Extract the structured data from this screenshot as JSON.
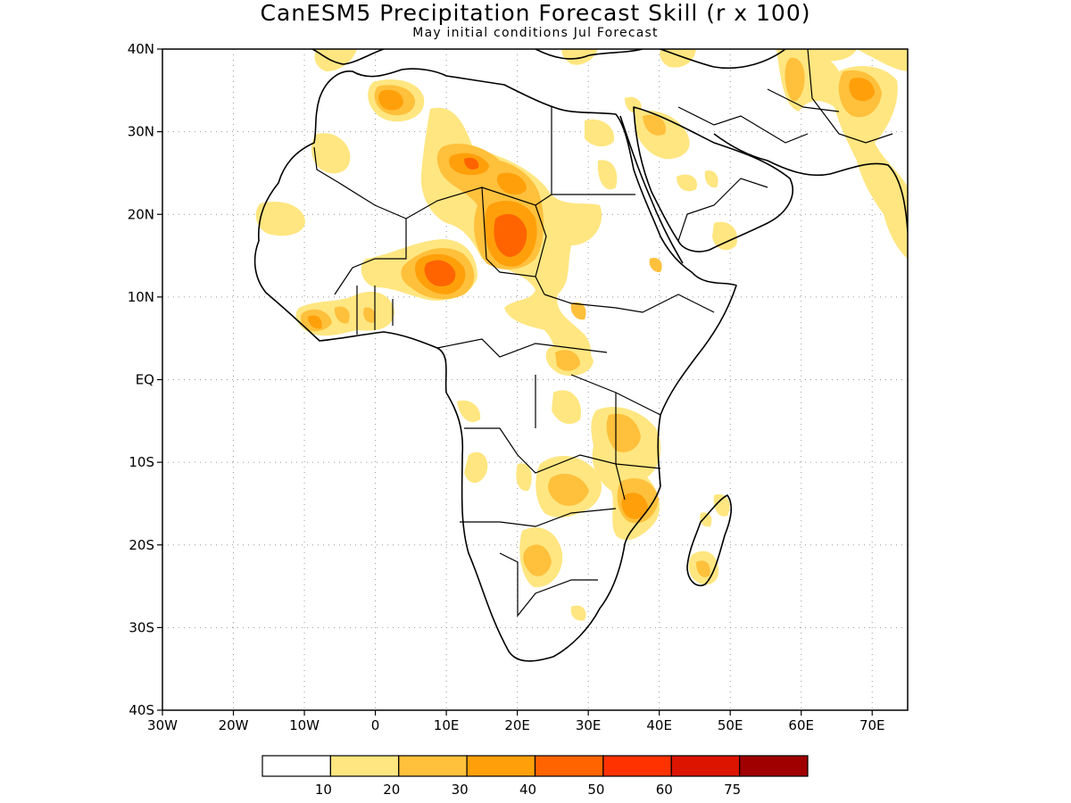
{
  "title": "CanESM5 Precipitation Forecast Skill (r x 100)",
  "subtitle": "May initial conditions  Jul Forecast",
  "map": {
    "lon_range": [
      -30,
      75
    ],
    "lat_range": [
      -40,
      40
    ],
    "y_ticks": [
      {
        "value": 40,
        "label": "40N"
      },
      {
        "value": 30,
        "label": "30N"
      },
      {
        "value": 20,
        "label": "20N"
      },
      {
        "value": 10,
        "label": "10N"
      },
      {
        "value": 0,
        "label": "EQ"
      },
      {
        "value": -10,
        "label": "10S"
      },
      {
        "value": -20,
        "label": "20S"
      },
      {
        "value": -30,
        "label": "30S"
      },
      {
        "value": -40,
        "label": "40S"
      }
    ],
    "x_ticks": [
      {
        "value": -30,
        "label": "30W"
      },
      {
        "value": -20,
        "label": "20W"
      },
      {
        "value": -10,
        "label": "10W"
      },
      {
        "value": 0,
        "label": "0"
      },
      {
        "value": 10,
        "label": "10E"
      },
      {
        "value": 20,
        "label": "20E"
      },
      {
        "value": 30,
        "label": "30E"
      },
      {
        "value": 40,
        "label": "40E"
      },
      {
        "value": 50,
        "label": "50E"
      },
      {
        "value": 60,
        "label": "60E"
      },
      {
        "value": 70,
        "label": "70E"
      }
    ]
  },
  "colorbar": {
    "colors": [
      "#ffffff",
      "#ffe680",
      "#ffc03c",
      "#ffa00a",
      "#ff6400",
      "#ff3200",
      "#dc1400",
      "#a00000"
    ],
    "labels": [
      "10",
      "20",
      "30",
      "40",
      "50",
      "60",
      "75"
    ]
  }
}
